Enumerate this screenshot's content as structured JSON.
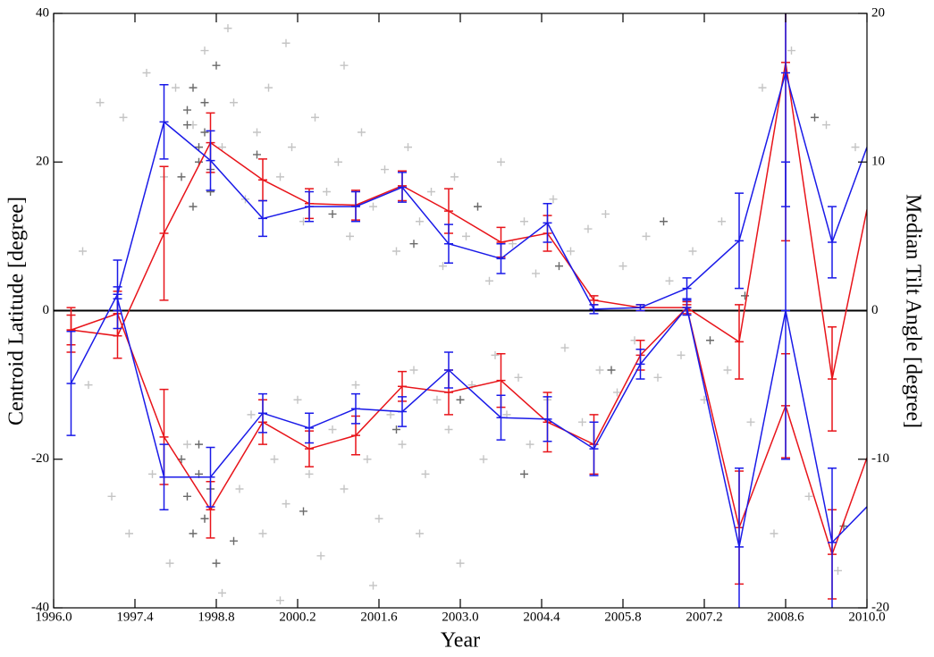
{
  "chart_data": {
    "type": "line",
    "x_label": "Year",
    "y_label": "Centroid Latitude [degree]",
    "y2_label": "Median Tilt Angle [degree]",
    "xlim": [
      1996.0,
      2010.0
    ],
    "xticks": [
      {
        "value": 1996.0,
        "label": "1996.0"
      },
      {
        "value": 1997.4,
        "label": "1997.4"
      },
      {
        "value": 1998.8,
        "label": "1998.8"
      },
      {
        "value": 2000.2,
        "label": "2000.2"
      },
      {
        "value": 2001.6,
        "label": "2001.6"
      },
      {
        "value": 2003.0,
        "label": "2003.0"
      },
      {
        "value": 2004.4,
        "label": "2004.4"
      },
      {
        "value": 2005.8,
        "label": "2005.8"
      },
      {
        "value": 2007.2,
        "label": "2007.2"
      },
      {
        "value": 2008.6,
        "label": "2008.6"
      },
      {
        "value": 2010.0,
        "label": "2010.0"
      }
    ],
    "ylim": [
      -40,
      40
    ],
    "yticks": [
      -40,
      -20,
      0,
      20,
      40
    ],
    "y2lim": [
      -20,
      20
    ],
    "y2ticks": [
      -20,
      -10,
      0,
      10,
      20
    ],
    "x": [
      1996.3,
      1997.1,
      1997.9,
      1998.7,
      1999.6,
      2000.4,
      2001.2,
      2002.0,
      2002.8,
      2003.7,
      2004.5,
      2005.3,
      2006.1,
      2006.9,
      2007.8,
      2008.6,
      2009.4,
      2010.0
    ],
    "scatter": [
      {
        "color": "#c4c4c4",
        "x": [
          1996.5,
          1996.8,
          1997.2,
          1997.6,
          1997.9,
          1998.1,
          1998.4,
          1998.6,
          1998.9,
          1999.1,
          1999.3,
          1999.5,
          1999.7,
          1999.9,
          2000.1,
          2000.3,
          2000.5,
          2000.7,
          2000.9,
          2001.1,
          2001.3,
          2001.5,
          2001.7,
          2001.9,
          2002.1,
          2002.3,
          2002.5,
          2002.7,
          2002.9,
          2003.1,
          2003.3,
          2003.5,
          2003.7,
          2003.9,
          2004.1,
          2004.3,
          2004.6,
          2004.9,
          2005.2,
          2005.5,
          2005.8,
          2006.2,
          2006.6,
          2007.0,
          2007.5,
          2008.2,
          2008.7,
          2009.3,
          2009.8,
          1999.0,
          2000.0,
          2001.0,
          1996.6,
          1997.0,
          1997.3,
          1997.7,
          1998.0,
          1998.3,
          1998.6,
          1998.9,
          1999.2,
          1999.4,
          1999.6,
          1999.8,
          2000.0,
          2000.2,
          2000.4,
          2000.6,
          2000.8,
          2001.0,
          2001.2,
          2001.4,
          2001.6,
          2001.8,
          2002.0,
          2002.2,
          2002.4,
          2002.6,
          2002.8,
          2003.0,
          2003.2,
          2003.4,
          2003.6,
          2003.8,
          2004.0,
          2004.2,
          2004.5,
          2004.8,
          2005.1,
          2005.4,
          2005.7,
          2006.0,
          2006.4,
          2006.8,
          2007.2,
          2007.6,
          2008.0,
          2008.4,
          2009.0,
          2009.5,
          1999.9,
          2001.5,
          2002.3
        ],
        "values": [
          8,
          28,
          26,
          32,
          18,
          30,
          25,
          35,
          22,
          28,
          15,
          24,
          30,
          18,
          22,
          12,
          26,
          16,
          20,
          10,
          24,
          14,
          19,
          8,
          22,
          12,
          16,
          6,
          18,
          10,
          14,
          4,
          20,
          9,
          12,
          5,
          15,
          8,
          11,
          13,
          6,
          10,
          4,
          8,
          12,
          30,
          35,
          25,
          22,
          38,
          36,
          33,
          -10,
          -25,
          -30,
          -22,
          -34,
          -18,
          -28,
          -38,
          -24,
          -14,
          -30,
          -20,
          -26,
          -12,
          -22,
          -33,
          -16,
          -24,
          -10,
          -20,
          -28,
          -14,
          -18,
          -8,
          -22,
          -12,
          -16,
          -34,
          -10,
          -20,
          -6,
          -14,
          -9,
          -18,
          -12,
          -5,
          -15,
          -8,
          -11,
          -4,
          -9,
          -6,
          -12,
          -8,
          -15,
          -30,
          -25,
          -35,
          -39,
          -37,
          -30
        ]
      },
      {
        "color": "#6a6a6a",
        "x": [
          1998.2,
          1998.3,
          1998.4,
          1998.5,
          1998.6,
          1998.7,
          1998.8,
          1998.5,
          1998.3,
          1998.6,
          1998.4,
          1998.7,
          1999.5,
          2000.8,
          2002.2,
          2003.3,
          2004.7,
          2006.5,
          2007.9,
          2009.1,
          1998.2,
          1998.3,
          1998.4,
          1998.5,
          1998.6,
          1998.7,
          1998.8,
          1998.5,
          1999.1,
          2000.3,
          2001.9,
          2003.0,
          2004.1,
          2005.6,
          2007.3,
          2009.6
        ],
        "values": [
          18,
          25,
          30,
          22,
          28,
          16,
          33,
          20,
          27,
          24,
          14,
          19,
          21,
          13,
          9,
          14,
          6,
          12,
          2,
          26,
          -20,
          -25,
          -30,
          -22,
          -28,
          -24,
          -34,
          -18,
          -31,
          -27,
          -16,
          -12,
          -22,
          -8,
          -4,
          -29
        ]
      }
    ],
    "series": [
      {
        "color": "#e8141a",
        "axis": "y2",
        "values": [
          -1.3,
          -1.7,
          5.2,
          11.3,
          8.8,
          7.2,
          7.1,
          8.4,
          6.7,
          4.6,
          5.2,
          0.7,
          0.2,
          0.2,
          -2.1,
          16.7,
          -4.6,
          6.8
        ],
        "errors": [
          1.5,
          1.5,
          4.5,
          2.0,
          1.4,
          1.0,
          1.0,
          1.0,
          1.5,
          1.0,
          1.2,
          0.3,
          0.2,
          0.2,
          2.5,
          12.0,
          3.5,
          null
        ]
      },
      {
        "color": "#e8141a",
        "axis": "y2",
        "values": [
          -1.3,
          -0.2,
          -8.5,
          -13.4,
          -7.5,
          -9.3,
          -8.4,
          -5.1,
          -5.5,
          -4.7,
          -7.5,
          -9.0,
          -3.0,
          0.2,
          -14.6,
          -6.4,
          -16.4,
          -9.9
        ],
        "errors": [
          1.0,
          1.5,
          3.2,
          1.9,
          1.5,
          1.2,
          1.3,
          1.0,
          1.5,
          1.8,
          2.0,
          2.0,
          1.0,
          0.4,
          3.8,
          3.5,
          3.0,
          null
        ]
      },
      {
        "color": "#1a1ae8",
        "axis": "y2",
        "values": [
          -4.9,
          1.1,
          12.7,
          10.1,
          6.2,
          7.0,
          7.0,
          8.3,
          4.5,
          3.5,
          5.9,
          0.1,
          0.2,
          1.5,
          4.7,
          16.0,
          4.6,
          11.0
        ],
        "errors": [
          3.5,
          2.3,
          2.5,
          2.0,
          1.2,
          1.0,
          1.0,
          1.0,
          1.3,
          1.0,
          1.3,
          0.3,
          0.2,
          0.7,
          3.2,
          9.0,
          2.4,
          null
        ]
      },
      {
        "color": "#1a1ae8",
        "axis": "y2",
        "values": [
          null,
          0.8,
          -11.2,
          -11.2,
          -6.9,
          -7.9,
          -6.6,
          -6.8,
          -4.0,
          -7.2,
          -7.3,
          -9.3,
          -3.6,
          0.2,
          -15.9,
          0.0,
          -15.6,
          -13.2
        ],
        "errors": [
          null,
          0.8,
          2.2,
          2.0,
          1.3,
          1.0,
          1.0,
          1.0,
          1.2,
          1.5,
          1.5,
          1.8,
          1.0,
          0.5,
          5.3,
          10.0,
          5.0,
          null
        ]
      }
    ]
  }
}
